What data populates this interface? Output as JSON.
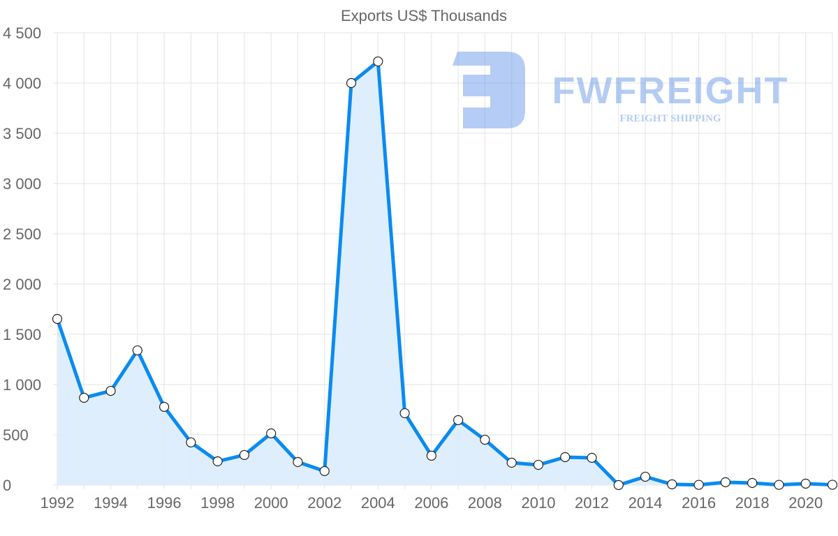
{
  "chart_data": {
    "type": "line",
    "title": "Exports US$ Thousands",
    "xlabel": "",
    "ylabel": "",
    "x": [
      1992,
      1993,
      1994,
      1995,
      1996,
      1997,
      1998,
      1999,
      2000,
      2001,
      2002,
      2003,
      2004,
      2005,
      2006,
      2007,
      2008,
      2009,
      2010,
      2011,
      2012,
      2013,
      2014,
      2015,
      2016,
      2017,
      2018,
      2019,
      2020,
      2021
    ],
    "series": [
      {
        "name": "Exports US$ Thousands",
        "values": [
          1653,
          868,
          937,
          1340,
          778,
          424,
          236,
          299,
          514,
          229,
          139,
          4000,
          4215,
          715,
          292,
          646,
          451,
          222,
          201,
          278,
          271,
          0,
          83,
          7,
          2,
          28,
          21,
          2,
          14,
          3
        ]
      }
    ],
    "ylim": [
      0,
      4500
    ],
    "xlim": [
      1992,
      2021
    ],
    "y_ticks": [
      "0",
      "500",
      "1 000",
      "1 500",
      "2 000",
      "2 500",
      "3 000",
      "3 500",
      "4 000",
      "4 500"
    ],
    "x_ticks": [
      "1992",
      "1994",
      "1996",
      "1998",
      "2000",
      "2002",
      "2004",
      "2006",
      "2008",
      "2010",
      "2012",
      "2014",
      "2016",
      "2018",
      "2020"
    ],
    "grid": true,
    "legend": "none",
    "colors": {
      "line": "#0a8bf0",
      "fill": "#dbecfc",
      "grid": "#e3e3e3"
    }
  },
  "watermark": {
    "brand": "FWFREIGHT",
    "tagline": "FREIGHT SHIPPING"
  }
}
